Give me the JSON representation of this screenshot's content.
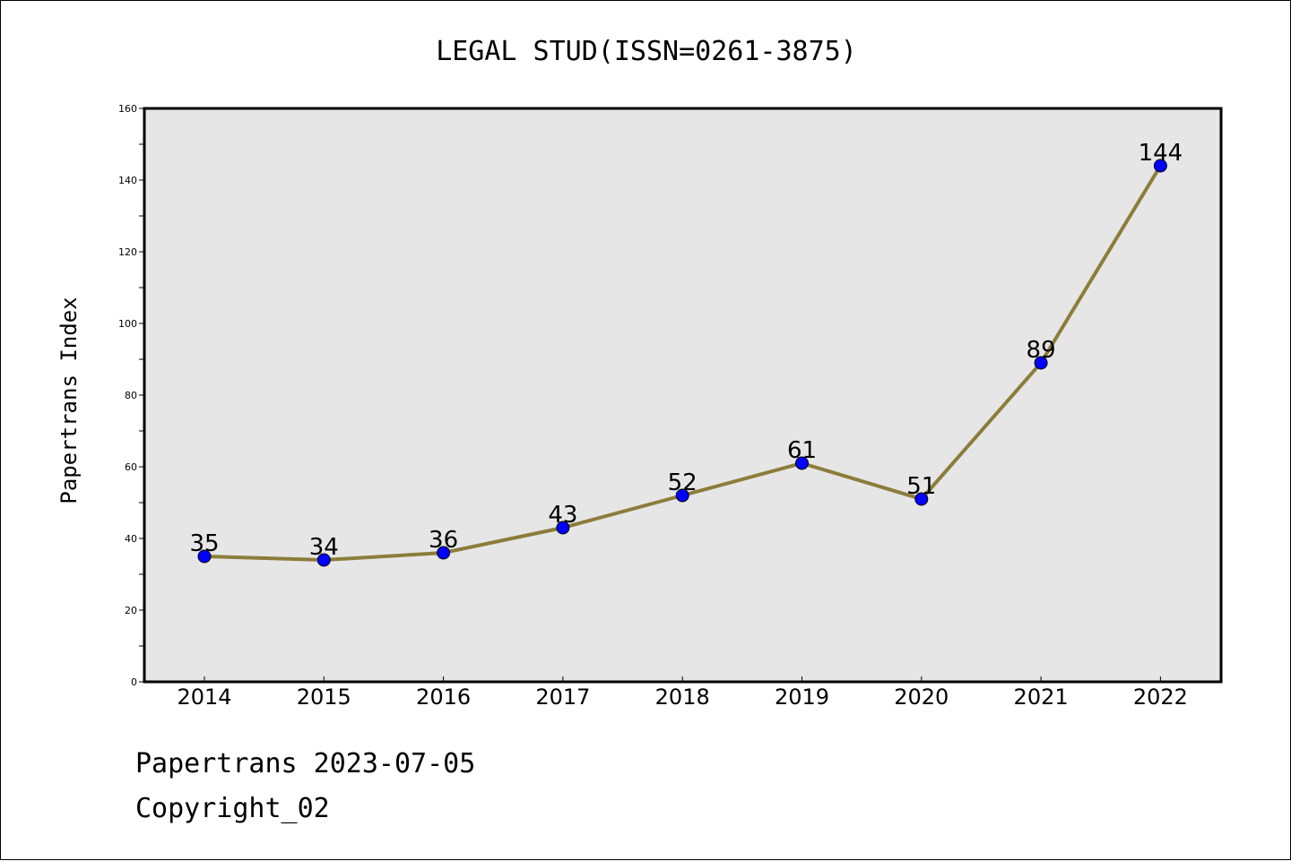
{
  "chart_data": {
    "type": "line",
    "title": "LEGAL STUD(ISSN=0261-3875)",
    "xlabel": "",
    "ylabel": "Papertrans Index",
    "categories": [
      "2014",
      "2015",
      "2016",
      "2017",
      "2018",
      "2019",
      "2020",
      "2021",
      "2022"
    ],
    "series": [
      {
        "values": [
          35,
          34,
          36,
          43,
          52,
          61,
          51,
          89,
          144
        ],
        "data_labels": [
          "35",
          "34",
          "36",
          "43",
          "52",
          "61",
          "51",
          "89",
          "144"
        ],
        "line_color": "#8b7d3a",
        "marker_color": "#0000ff"
      }
    ],
    "ylim": [
      0,
      160
    ],
    "y_tick_labels": [
      "0",
      "20",
      "40",
      "60",
      "80",
      "100",
      "120",
      "140",
      "160"
    ],
    "grid": false,
    "plot_background": "#e6e6e6"
  },
  "footer": {
    "date_line": "Papertrans 2023-07-05",
    "copyright_line": "Copyright_02"
  }
}
